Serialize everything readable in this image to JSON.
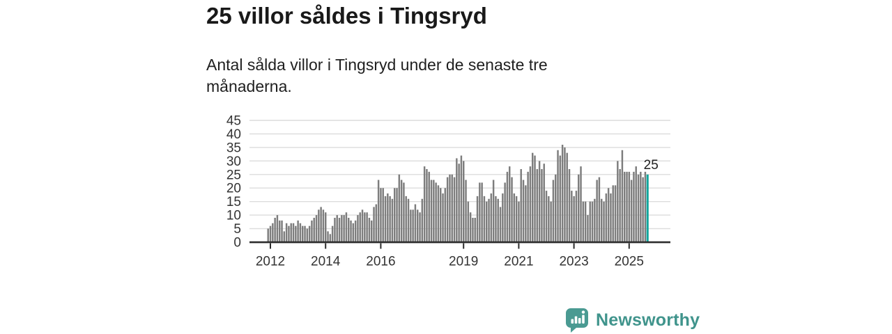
{
  "header": {
    "title": "25 villor såldes i Tingsryd",
    "subtitle_line1": "Antal sålda villor i Tingsryd under de senaste tre",
    "subtitle_line2": "månaderna."
  },
  "chart_data": {
    "type": "bar",
    "title": "25 villor såldes i Tingsryd",
    "xlabel": "",
    "ylabel": "",
    "x_unit": "month",
    "grid": true,
    "legend": false,
    "ylim": [
      0,
      45
    ],
    "y_ticks": [
      0,
      5,
      10,
      15,
      20,
      25,
      30,
      35,
      40,
      45
    ],
    "x_tick_years": [
      2012,
      2014,
      2016,
      2019,
      2021,
      2023,
      2025
    ],
    "values": [
      5,
      6,
      7,
      9,
      10,
      8,
      8,
      4,
      7,
      6,
      7,
      7,
      6,
      8,
      7,
      6,
      6,
      5,
      6,
      8,
      9,
      10,
      12,
      13,
      12,
      11,
      4,
      3,
      6,
      9,
      10,
      9,
      10,
      10,
      11,
      9,
      8,
      7,
      8,
      10,
      11,
      12,
      11,
      11,
      9,
      8,
      13,
      14,
      23,
      20,
      20,
      17,
      18,
      17,
      16,
      20,
      20,
      25,
      23,
      22,
      17,
      16,
      12,
      12,
      14,
      12,
      11,
      16,
      28,
      27,
      26,
      23,
      23,
      22,
      21,
      20,
      18,
      20,
      24,
      25,
      25,
      24,
      31,
      29,
      32,
      30,
      23,
      15,
      11,
      9,
      9,
      17,
      22,
      22,
      17,
      15,
      16,
      18,
      23,
      17,
      16,
      13,
      18,
      22,
      26,
      28,
      24,
      18,
      17,
      15,
      27,
      23,
      21,
      26,
      28,
      33,
      32,
      27,
      30,
      27,
      29,
      19,
      17,
      15,
      23,
      25,
      34,
      32,
      36,
      35,
      33,
      27,
      19,
      17,
      19,
      25,
      28,
      15,
      15,
      10,
      15,
      15,
      16,
      23,
      24,
      16,
      15,
      18,
      20,
      18,
      21,
      21,
      30,
      27,
      34,
      26,
      26,
      26,
      23,
      26,
      28,
      25,
      26,
      24,
      26,
      25
    ],
    "highlight_last": true,
    "highlight_last_value": 25,
    "colors": {
      "bar": "#7d7d7d",
      "accent": "#12a79d",
      "grid": "#dcdcdc",
      "axis": "#2b2b2b",
      "tick_text": "#333333"
    }
  },
  "annotation": {
    "last_value_label": "25"
  },
  "footer": {
    "brand": "Newsworthy",
    "brand_color": "#40948c",
    "logo_icon": "bar-chart-speech-bubble"
  }
}
